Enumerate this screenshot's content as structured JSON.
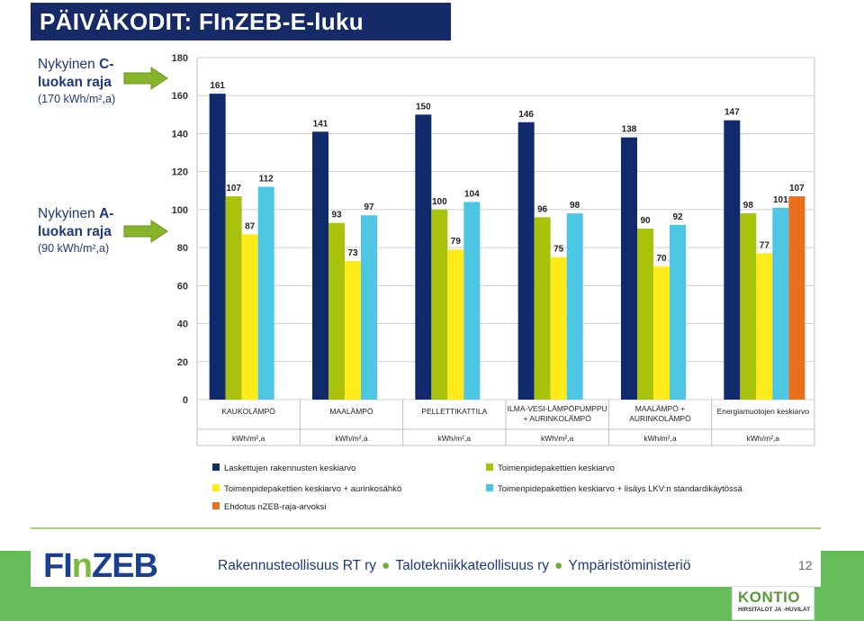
{
  "slide": {
    "title": "PÄIVÄKODIT: FInZEB-E-luku",
    "page_number": "12"
  },
  "annotations": {
    "c_class": {
      "line1_prefix": "Nykyinen ",
      "line1_bold": "C-",
      "line2": "luokan raja",
      "line3": "(170 kWh/m²,a)"
    },
    "a_class": {
      "line1_prefix": "Nykyinen ",
      "line1_bold": "A-",
      "line2": "luokan raja",
      "line3": "(90 kWh/m²,a)"
    },
    "arrow_color": "#86b52c"
  },
  "footer": {
    "logo": "FInZEB",
    "org1": "Rakennusteollisuus RT ry",
    "org2": "Talotekniikkateollisuus ry",
    "org3": "Ympäristöministeriö",
    "brand": "KONTIO",
    "brand_sub": "HIRSITALOT JA -HUVILAT"
  },
  "chart_data": {
    "type": "bar",
    "ylim": [
      0,
      180
    ],
    "yticks": [
      0,
      20,
      40,
      60,
      80,
      100,
      120,
      140,
      160,
      180
    ],
    "grid": true,
    "categories": [
      [
        "KAUKOLÄMPÖ"
      ],
      [
        "MAALÄMPÖ"
      ],
      [
        "PELLETTIKATTILA"
      ],
      [
        "ILMA-VESI-LÄMPÖPUMPPU",
        "+ AURINKOLÄMPÖ"
      ],
      [
        "MAALÄMPÖ +",
        "AURINKOLÄMPÖ"
      ],
      [
        "Energiamuotojen keskiarvo"
      ]
    ],
    "unit_row": "kWh/m²,a",
    "series": [
      {
        "name": "Laskettujen rakennusten keskiarvo",
        "color": "#102a6b",
        "values": [
          161,
          141,
          150,
          146,
          138,
          147
        ]
      },
      {
        "name": "Toimenpidepakettien keskiarvo",
        "color": "#a9c30c",
        "values": [
          107,
          93,
          100,
          96,
          90,
          98
        ]
      },
      {
        "name": "Toimenpidepakettien keskiarvo + aurinkosähkö",
        "color": "#ffeb1a",
        "values": [
          87,
          73,
          79,
          75,
          70,
          77
        ]
      },
      {
        "name": "Toimenpidepakettien keskiarvo + lisäys LKV:n standardikäytössä",
        "color": "#4dc6e4",
        "values": [
          112,
          97,
          104,
          98,
          92,
          101
        ]
      },
      {
        "name": "Ehdotus nZEB-raja-arvoksi",
        "color": "#e8701a",
        "values": [
          null,
          null,
          null,
          null,
          null,
          107
        ]
      }
    ]
  }
}
